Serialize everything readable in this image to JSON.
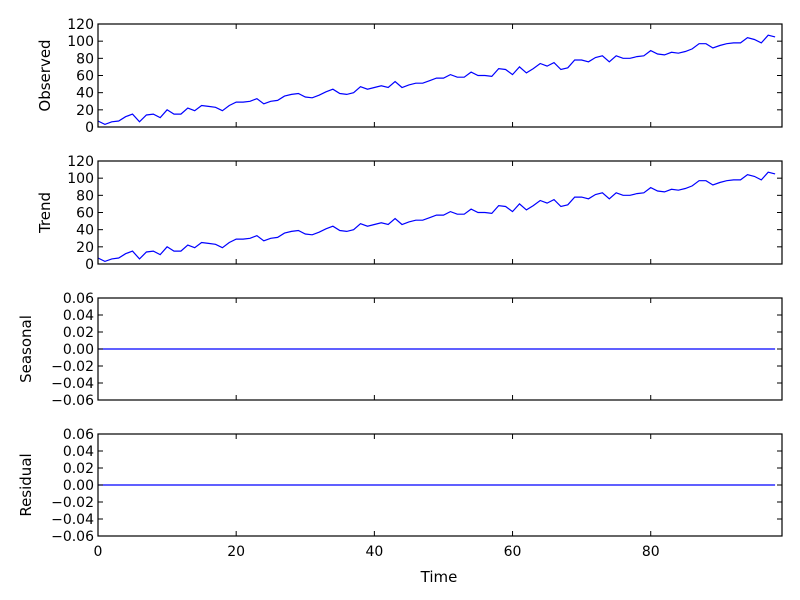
{
  "chart_data": [
    {
      "type": "line",
      "ylabel": "Observed",
      "xlim": [
        0,
        99
      ],
      "ylim": [
        0,
        120
      ],
      "yticks": [
        0,
        20,
        40,
        60,
        80,
        100,
        120
      ],
      "xticks": [
        0,
        20,
        40,
        60,
        80
      ],
      "line_color": "#0000ff",
      "x": [
        0,
        1,
        2,
        3,
        4,
        5,
        6,
        7,
        8,
        9,
        10,
        11,
        12,
        13,
        14,
        15,
        16,
        17,
        18,
        19,
        20,
        21,
        22,
        23,
        24,
        25,
        26,
        27,
        28,
        29,
        30,
        31,
        32,
        33,
        34,
        35,
        36,
        37,
        38,
        39,
        40,
        41,
        42,
        43,
        44,
        45,
        46,
        47,
        48,
        49,
        50,
        51,
        52,
        53,
        54,
        55,
        56,
        57,
        58,
        59,
        60,
        61,
        62,
        63,
        64,
        65,
        66,
        67,
        68,
        69,
        70,
        71,
        72,
        73,
        74,
        75,
        76,
        77,
        78,
        79,
        80,
        81,
        82,
        83,
        84,
        85,
        86,
        87,
        88,
        89,
        90,
        91,
        92,
        93,
        94,
        95,
        96,
        97,
        98
      ],
      "y": [
        7,
        3,
        6,
        7,
        12,
        15,
        6,
        14,
        15,
        11,
        20,
        15,
        15,
        22,
        19,
        25,
        24,
        23,
        19,
        25,
        29,
        29,
        30,
        33,
        27,
        30,
        31,
        36,
        38,
        39,
        35,
        34,
        37,
        41,
        44,
        39,
        38,
        40,
        47,
        44,
        46,
        48,
        46,
        53,
        46,
        49,
        51,
        51,
        54,
        57,
        57,
        61,
        58,
        58,
        64,
        60,
        60,
        59,
        68,
        67,
        61,
        70,
        63,
        68,
        74,
        71,
        75,
        67,
        69,
        78,
        78,
        76,
        81,
        83,
        76,
        83,
        80,
        80,
        82,
        83,
        89,
        85,
        84,
        87,
        86,
        88,
        91,
        97,
        97,
        92,
        95,
        97,
        98,
        98,
        104,
        102,
        98,
        107,
        105
      ]
    },
    {
      "type": "line",
      "ylabel": "Trend",
      "xlim": [
        0,
        99
      ],
      "ylim": [
        0,
        120
      ],
      "yticks": [
        0,
        20,
        40,
        60,
        80,
        100,
        120
      ],
      "xticks": [
        0,
        20,
        40,
        60,
        80
      ],
      "line_color": "#0000ff",
      "x": [
        0,
        1,
        2,
        3,
        4,
        5,
        6,
        7,
        8,
        9,
        10,
        11,
        12,
        13,
        14,
        15,
        16,
        17,
        18,
        19,
        20,
        21,
        22,
        23,
        24,
        25,
        26,
        27,
        28,
        29,
        30,
        31,
        32,
        33,
        34,
        35,
        36,
        37,
        38,
        39,
        40,
        41,
        42,
        43,
        44,
        45,
        46,
        47,
        48,
        49,
        50,
        51,
        52,
        53,
        54,
        55,
        56,
        57,
        58,
        59,
        60,
        61,
        62,
        63,
        64,
        65,
        66,
        67,
        68,
        69,
        70,
        71,
        72,
        73,
        74,
        75,
        76,
        77,
        78,
        79,
        80,
        81,
        82,
        83,
        84,
        85,
        86,
        87,
        88,
        89,
        90,
        91,
        92,
        93,
        94,
        95,
        96,
        97,
        98
      ],
      "y": [
        7,
        3,
        6,
        7,
        12,
        15,
        6,
        14,
        15,
        11,
        20,
        15,
        15,
        22,
        19,
        25,
        24,
        23,
        19,
        25,
        29,
        29,
        30,
        33,
        27,
        30,
        31,
        36,
        38,
        39,
        35,
        34,
        37,
        41,
        44,
        39,
        38,
        40,
        47,
        44,
        46,
        48,
        46,
        53,
        46,
        49,
        51,
        51,
        54,
        57,
        57,
        61,
        58,
        58,
        64,
        60,
        60,
        59,
        68,
        67,
        61,
        70,
        63,
        68,
        74,
        71,
        75,
        67,
        69,
        78,
        78,
        76,
        81,
        83,
        76,
        83,
        80,
        80,
        82,
        83,
        89,
        85,
        84,
        87,
        86,
        88,
        91,
        97,
        97,
        92,
        95,
        97,
        98,
        98,
        104,
        102,
        98,
        107,
        105
      ]
    },
    {
      "type": "line",
      "ylabel": "Seasonal",
      "xlim": [
        0,
        99
      ],
      "ylim": [
        -0.06,
        0.06
      ],
      "yticks": [
        "0.06",
        "0.04",
        "0.02",
        "0.00",
        "−0.02",
        "−0.04",
        "−0.06"
      ],
      "ytick_values": [
        0.06,
        0.04,
        0.02,
        0.0,
        -0.02,
        -0.04,
        -0.06
      ],
      "xticks": [
        0,
        20,
        40,
        60,
        80
      ],
      "line_color": "#0000ff",
      "x": [
        0,
        98
      ],
      "y": [
        0,
        0
      ]
    },
    {
      "type": "line",
      "ylabel": "Residual",
      "xlabel": "Time",
      "xlim": [
        0,
        99
      ],
      "ylim": [
        -0.06,
        0.06
      ],
      "yticks": [
        "0.06",
        "0.04",
        "0.02",
        "0.00",
        "−0.02",
        "−0.04",
        "−0.06"
      ],
      "ytick_values": [
        0.06,
        0.04,
        0.02,
        0.0,
        -0.02,
        -0.04,
        -0.06
      ],
      "xticks": [
        0,
        20,
        40,
        60,
        80
      ],
      "line_color": "#0000ff",
      "x": [
        0,
        98
      ],
      "y": [
        0,
        0
      ]
    }
  ]
}
